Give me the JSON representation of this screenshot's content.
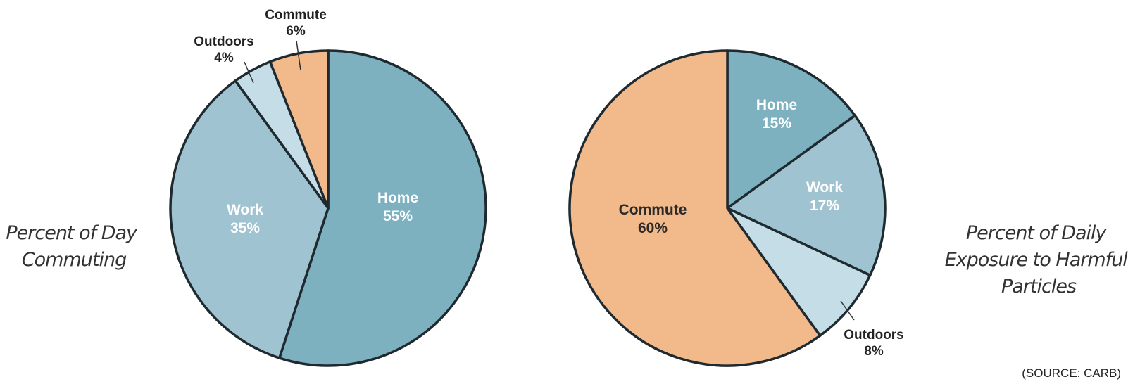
{
  "colors": {
    "Home": "#7eb1c0",
    "Work": "#9fc3d0",
    "Outdoors": "#c4dde6",
    "Commute": "#f2b98a"
  },
  "chart_data": [
    {
      "type": "pie",
      "title_lines": [
        "Percent of Day",
        "Commuting"
      ],
      "slices": [
        {
          "label": "Home",
          "value": 55,
          "value_label": "55%"
        },
        {
          "label": "Work",
          "value": 35,
          "value_label": "35%"
        },
        {
          "label": "Outdoors",
          "value": 4,
          "value_label": "4%"
        },
        {
          "label": "Commute",
          "value": 6,
          "value_label": "6%"
        }
      ]
    },
    {
      "type": "pie",
      "title_lines": [
        "Percent of Daily",
        "Exposure to Harmful",
        "Particles"
      ],
      "slices": [
        {
          "label": "Home",
          "value": 15,
          "value_label": "15%"
        },
        {
          "label": "Work",
          "value": 17,
          "value_label": "17%"
        },
        {
          "label": "Outdoors",
          "value": 8,
          "value_label": "8%"
        },
        {
          "label": "Commute",
          "value": 60,
          "value_label": "60%"
        }
      ]
    }
  ],
  "source": "(SOURCE: CARB)"
}
